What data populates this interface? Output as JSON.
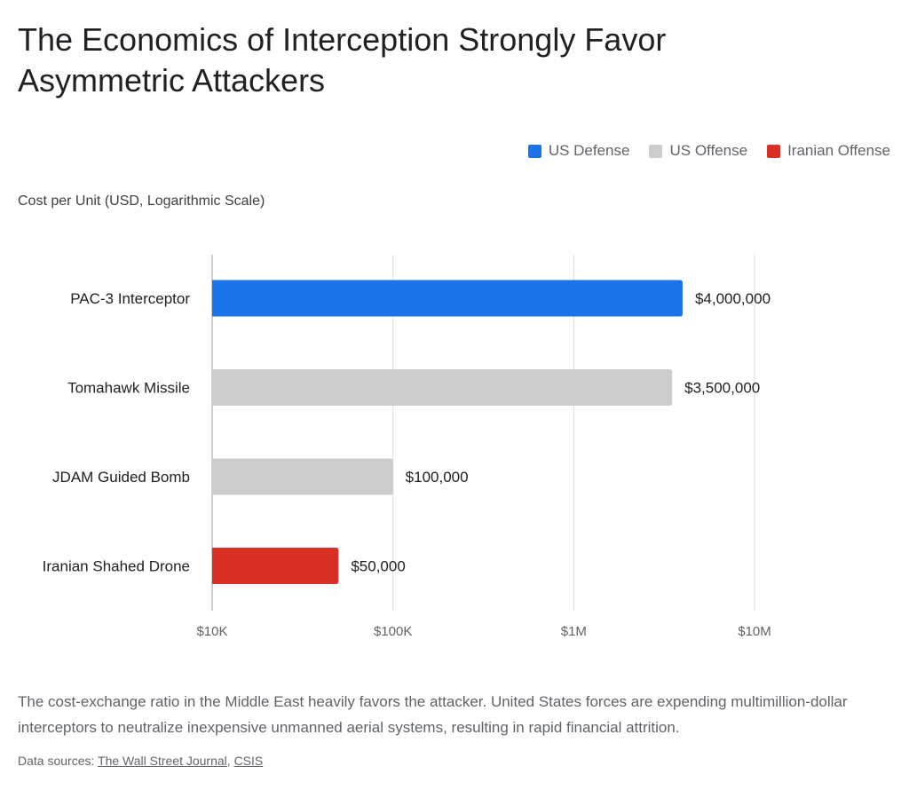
{
  "title": "The Economics of Interception Strongly Favor Asymmetric Attackers",
  "legend": [
    {
      "label": "US Defense",
      "color": "#1a73e8"
    },
    {
      "label": "US Offense",
      "color": "#cccccc"
    },
    {
      "label": "Iranian Offense",
      "color": "#d93025"
    }
  ],
  "chart_data": {
    "type": "bar",
    "orientation": "horizontal",
    "title": "The Economics of Interception Strongly Favor Asymmetric Attackers",
    "xlabel": "Cost per Unit (USD, Logarithmic Scale)",
    "x_scale": "log",
    "xlim": [
      10000,
      10000000
    ],
    "x_ticks": [
      10000,
      100000,
      1000000,
      10000000
    ],
    "x_tick_labels": [
      "$10K",
      "$100K",
      "$1M",
      "$10M"
    ],
    "grid": true,
    "legend_position": "top-right",
    "categories": [
      "PAC-3 Interceptor",
      "Tomahawk Missile",
      "JDAM Guided Bomb",
      "Iranian Shahed Drone"
    ],
    "values": [
      4000000,
      3500000,
      100000,
      50000
    ],
    "value_labels": [
      "$4,000,000",
      "$3,500,000",
      "$100,000",
      "$50,000"
    ],
    "groups": [
      "US Defense",
      "US Offense",
      "US Offense",
      "Iranian Offense"
    ]
  },
  "description": "The cost-exchange ratio in the Middle East heavily favors the attacker. United States forces are expending multimillion-dollar interceptors to neutralize inexpensive unmanned aerial systems, resulting in rapid financial attrition.",
  "sources": {
    "prefix": "Data sources:",
    "links": [
      "The Wall Street Journal",
      "CSIS"
    ],
    "separator": ","
  }
}
